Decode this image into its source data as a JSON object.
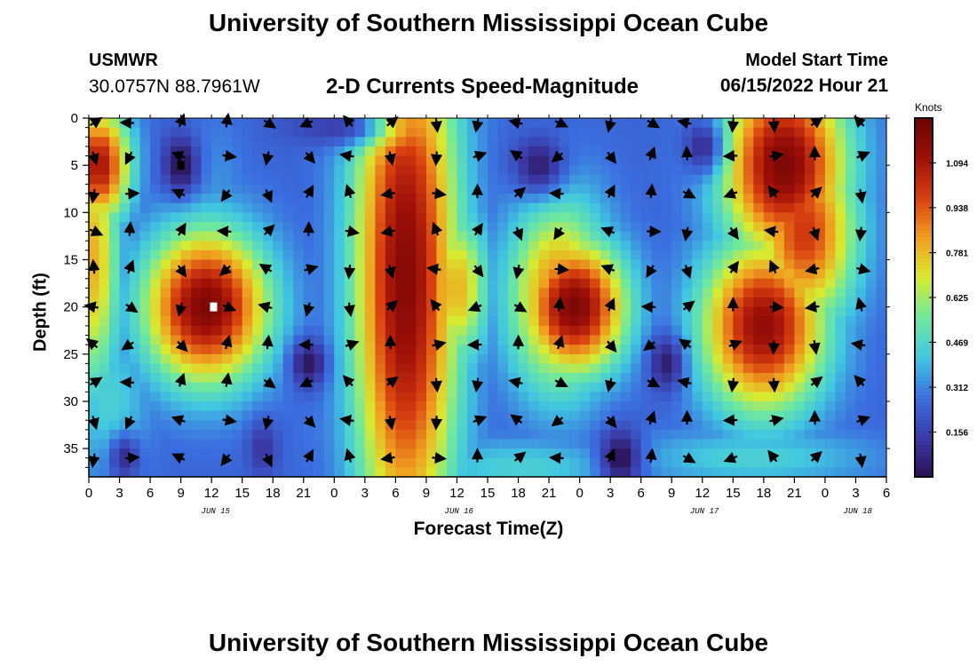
{
  "header": {
    "title": "University of Southern Mississippi Ocean Cube",
    "station": "USMWR",
    "coords": "30.0757N  88.7961W",
    "subtitle": "2-D Currents Speed-Magnitude",
    "model_start_label": "Model Start Time",
    "model_start_value": "06/15/2022 Hour 21",
    "footer_title": "University of Southern Mississippi Ocean Cube"
  },
  "colors": {
    "stops": [
      "#2a1050",
      "#3b3aa8",
      "#3b6fe0",
      "#41c8e0",
      "#6ee8a0",
      "#d8ea30",
      "#f0a020",
      "#d84010",
      "#a01008",
      "#6a0404"
    ],
    "arrow": "#000000",
    "marker": "#ffffff"
  },
  "chart_data": {
    "type": "heatmap",
    "title": "2-D Currents Speed-Magnitude",
    "xlabel": "Forecast Time(Z)",
    "ylabel": "Depth (ft)",
    "units_label": "Knots",
    "x_range_hours": [
      0,
      78
    ],
    "y_range_ft": [
      0,
      38
    ],
    "x_tick_labels": [
      "0",
      "3",
      "6",
      "9",
      "12",
      "15",
      "18",
      "21",
      "0",
      "3",
      "6",
      "9",
      "12",
      "15",
      "18",
      "21",
      "0",
      "3",
      "6",
      "9",
      "12",
      "15",
      "18",
      "21",
      "0",
      "3",
      "6"
    ],
    "y_ticks": [
      0,
      5,
      10,
      15,
      20,
      25,
      30,
      35
    ],
    "date_labels": [
      {
        "label": "JUN 15",
        "hour": 12.4
      },
      {
        "label": "JUN 16",
        "hour": 36.2
      },
      {
        "label": "JUN 17",
        "hour": 60.2
      },
      {
        "label": "JUN 18",
        "hour": 75.2
      }
    ],
    "colorbar": {
      "min": 0.0,
      "max": 1.25,
      "ticks": [
        0.156,
        0.312,
        0.469,
        0.625,
        0.781,
        0.938,
        1.094
      ]
    },
    "speed_features": [
      {
        "hour": 11.5,
        "depth": 20,
        "speed": 1.2,
        "sx": 6,
        "sy": 8
      },
      {
        "hour": 10,
        "depth": 22,
        "speed": 0.5,
        "sx": 3,
        "sy": 3
      },
      {
        "hour": 31,
        "depth": 17,
        "speed": 1.18,
        "sx": 5,
        "sy": 30
      },
      {
        "hour": 36,
        "depth": 18,
        "speed": 0.8,
        "sx": 3,
        "sy": 8
      },
      {
        "hour": 47.5,
        "depth": 20,
        "speed": 1.2,
        "sx": 5,
        "sy": 7
      },
      {
        "hour": 46,
        "depth": 19,
        "speed": 0.9,
        "sx": 5,
        "sy": 10
      },
      {
        "hour": 66,
        "depth": 22,
        "speed": 1.15,
        "sx": 6,
        "sy": 9
      },
      {
        "hour": 68,
        "depth": 5,
        "speed": 1.2,
        "sx": 6,
        "sy": 10
      },
      {
        "hour": 70,
        "depth": 12,
        "speed": 1.0,
        "sx": 5,
        "sy": 10
      },
      {
        "hour": 1,
        "depth": 5,
        "speed": 1.1,
        "sx": 3,
        "sy": 6
      },
      {
        "hour": 0.5,
        "depth": 15,
        "speed": 0.8,
        "sx": 2.5,
        "sy": 14
      },
      {
        "hour": 2,
        "depth": 30,
        "speed": 0.45,
        "sx": 4,
        "sy": 8
      },
      {
        "hour": 12.5,
        "depth": 12,
        "speed": 0.35,
        "sx": 3,
        "sy": 12
      },
      {
        "hour": 42,
        "depth": 37,
        "speed": 0.45,
        "sx": 10,
        "sy": 3
      },
      {
        "hour": 65,
        "depth": 36,
        "speed": 0.45,
        "sx": 12,
        "sy": 3
      },
      {
        "hour": 24,
        "depth": 33,
        "speed": 0.3,
        "sx": 4,
        "sy": 6
      }
    ],
    "low_features": [
      {
        "hour": 9,
        "depth": 5,
        "speed": 0.0,
        "sx": 1.7,
        "sy": 3
      },
      {
        "hour": 21.5,
        "depth": 26,
        "speed": 0.02,
        "sx": 1.7,
        "sy": 2.5
      },
      {
        "hour": 44,
        "depth": 5,
        "speed": 0.05,
        "sx": 2.5,
        "sy": 3
      },
      {
        "hour": 52,
        "depth": 36,
        "speed": 0.0,
        "sx": 2,
        "sy": 3
      },
      {
        "hour": 56.5,
        "depth": 26,
        "speed": 0.05,
        "sx": 1.7,
        "sy": 3
      },
      {
        "hour": 60,
        "depth": 3,
        "speed": 0.1,
        "sx": 2,
        "sy": 3
      },
      {
        "hour": 24,
        "depth": 1,
        "speed": 0.15,
        "sx": 5,
        "sy": 2
      },
      {
        "hour": 17,
        "depth": 35,
        "speed": 0.12,
        "sx": 1.5,
        "sy": 3
      },
      {
        "hour": 3.5,
        "depth": 36,
        "speed": 0.1,
        "sx": 1.5,
        "sy": 2.5
      }
    ],
    "arrow_columns_hours": [
      0.5,
      4,
      9,
      13.5,
      17.5,
      21.5,
      25.5,
      29.5,
      34,
      38,
      42,
      46,
      51,
      55,
      58.5,
      63,
      67,
      71,
      75.5
    ],
    "arrow_rows_depth": [
      0.5,
      4,
      8,
      12,
      16,
      20,
      24,
      28,
      32,
      36
    ],
    "markers": [
      {
        "hour": 9,
        "depth": 5,
        "color": "#000000"
      },
      {
        "hour": 12.2,
        "depth": 20,
        "color": "#ffffff"
      }
    ]
  }
}
